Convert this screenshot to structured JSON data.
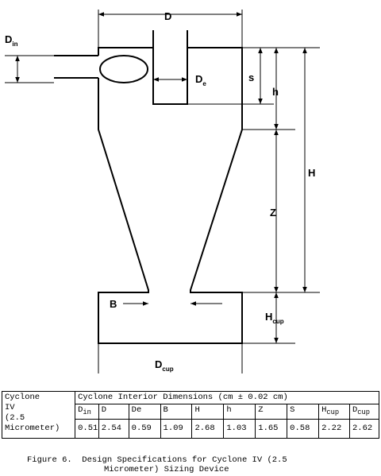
{
  "diagram": {
    "labels": {
      "D": "D",
      "D_in": "D",
      "D_in_sub": "in",
      "D_e": "D",
      "D_e_sub": "e",
      "s": "s",
      "h": "h",
      "H": "H",
      "Z": "Z",
      "B": "B",
      "H_cup": "H",
      "H_cup_sub": "cup",
      "D_cup": "D",
      "D_cup_sub": "cup"
    }
  },
  "table": {
    "row_header": [
      "Cyclone",
      "IV",
      "(2.5",
      "Micrometer)"
    ],
    "group_header": "Cyclone Interior Dimensions (cm ± 0.02 cm)",
    "columns": [
      {
        "main": "D",
        "sub": "in"
      },
      {
        "main": "D",
        "sub": ""
      },
      {
        "main": "De",
        "sub": ""
      },
      {
        "main": "B",
        "sub": ""
      },
      {
        "main": "H",
        "sub": ""
      },
      {
        "main": "h",
        "sub": ""
      },
      {
        "main": "Z",
        "sub": ""
      },
      {
        "main": "S",
        "sub": ""
      },
      {
        "main": "H",
        "sub": "cup"
      },
      {
        "main": "D",
        "sub": "cup"
      }
    ],
    "values": [
      "0.51",
      "2.54",
      "0.59",
      "1.09",
      "2.68",
      "1.03",
      "1.65",
      "0.58",
      "2.22",
      "2.62"
    ]
  },
  "caption": {
    "line1": "Figure 6.  Design Specifications for Cyclone IV (2.5",
    "line2": "Micrometer) Sizing Device"
  }
}
